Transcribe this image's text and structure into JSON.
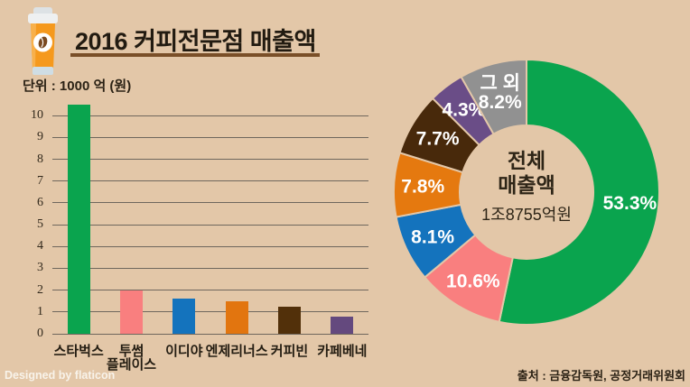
{
  "header": {
    "title": "2016 커피전문점 매출액",
    "unit_label": "단위 : 1000 억 (원)"
  },
  "footer": {
    "credit": "Designed by flaticon",
    "source": "출처 : 금융감독원, 공정거래위원회"
  },
  "colors": {
    "background": "#e3c7a8",
    "title_underline": "#7a4f28",
    "text_dark": "#2b2215",
    "grid_line": "#6f675d",
    "label_white": "#ffffff"
  },
  "chart_data": [
    {
      "type": "bar",
      "title": "2016 커피전문점 매출액",
      "ylabel": "단위 : 1000 억 (원)",
      "categories": [
        "스타벅스",
        "투썸\n플레이스",
        "이디야",
        "엔제리너스",
        "커피빈",
        "카페베네"
      ],
      "values": [
        10.5,
        2.0,
        1.6,
        1.5,
        1.25,
        0.8
      ],
      "bar_colors": [
        "#0aa44e",
        "#f97f7f",
        "#1473bd",
        "#e2750f",
        "#52300a",
        "#64497e"
      ],
      "ylim": [
        0,
        10
      ],
      "yticks": [
        0,
        1,
        2,
        3,
        4,
        5,
        6,
        7,
        8,
        9,
        10
      ],
      "grid": true
    },
    {
      "type": "pie",
      "subtype": "donut",
      "center_title_lines": [
        "전체",
        "매출액"
      ],
      "center_value": "1조8755억원",
      "segments": [
        {
          "text": "53.3%",
          "value": 53.3,
          "color": "#0aa44e"
        },
        {
          "text": "10.6%",
          "value": 10.6,
          "color": "#f97f7f"
        },
        {
          "text": "8.1%",
          "value": 8.1,
          "color": "#1473bd"
        },
        {
          "text": "7.8%",
          "value": 7.8,
          "color": "#e5790f"
        },
        {
          "text": "7.7%",
          "value": 7.7,
          "color": "#48290b"
        },
        {
          "text": "4.3%",
          "value": 4.3,
          "color": "#6a4d87"
        },
        {
          "text": "그 외\n8.2%",
          "value": 8.2,
          "color": "#919191",
          "label": "그 외"
        }
      ],
      "start_angle_deg": 0,
      "direction": "clockwise",
      "legend": "none"
    }
  ]
}
